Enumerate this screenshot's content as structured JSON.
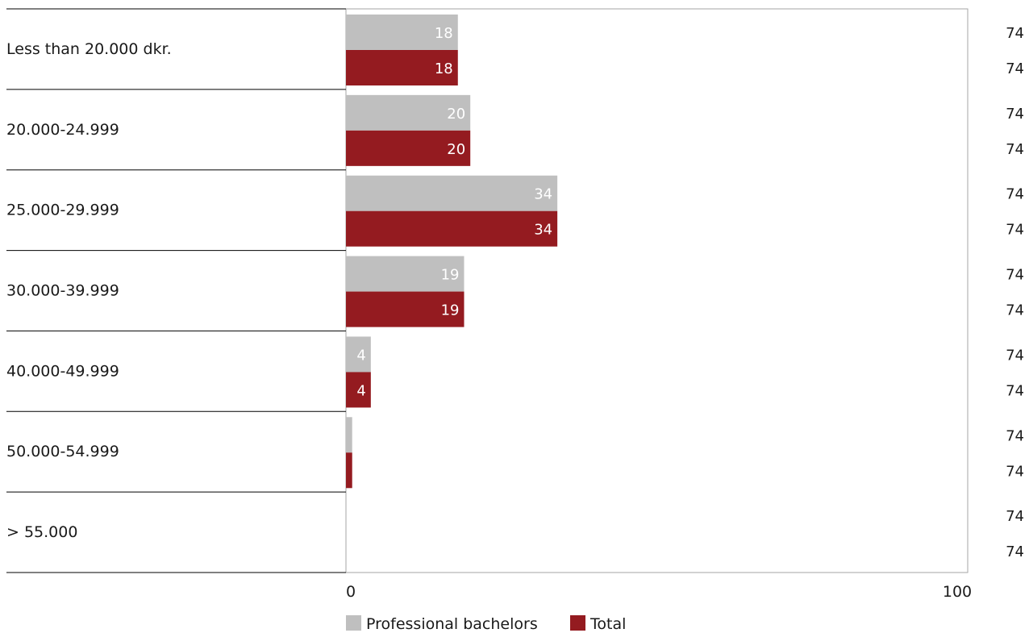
{
  "chart_data": {
    "type": "bar",
    "orientation": "horizontal",
    "categories": [
      "Less than 20.000 dkr.",
      "20.000-24.999",
      "25.000-29.999",
      "30.000-39.999",
      "40.000-49.999",
      "50.000-54.999",
      "> 55.000"
    ],
    "series": [
      {
        "name": "Professional bachelors",
        "values": [
          18,
          20,
          34,
          19,
          4,
          1,
          0
        ],
        "color": "#bfbfbf",
        "n": [
          74,
          74,
          74,
          74,
          74,
          74,
          74
        ]
      },
      {
        "name": "Total",
        "values": [
          18,
          20,
          34,
          19,
          4,
          1,
          0
        ],
        "color": "#941b20",
        "n": [
          74,
          74,
          74,
          74,
          74,
          74,
          74
        ]
      }
    ],
    "data_labels": [
      [
        "18",
        "20",
        "34",
        "19",
        "4",
        "",
        ""
      ],
      [
        "18",
        "20",
        "34",
        "19",
        "4",
        "",
        ""
      ]
    ],
    "xlim": [
      0,
      100
    ],
    "x_ticks": [
      "0",
      "100"
    ],
    "grid": false,
    "legend_position": "bottom"
  }
}
